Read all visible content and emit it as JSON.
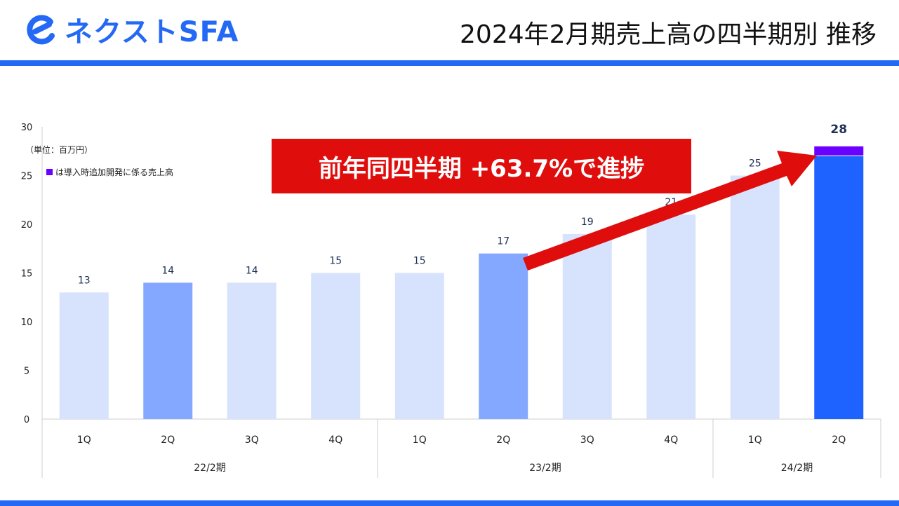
{
  "header": {
    "logo_text": "ネクストSFA",
    "logo_icon": "brand-e-icon",
    "title": "2024年2月期売上高の四半期別 推移"
  },
  "colors": {
    "brand_blue": "#2469f5",
    "bar_light": "#d7e3fc",
    "bar_mid": "#84a8ff",
    "bar_strong": "#1e63ff",
    "bar_new": "#6a00ff",
    "callout_red": "#e00d0d"
  },
  "callout": {
    "text": "前年同四半期 +63.7%で進捗"
  },
  "chart_data": {
    "type": "bar",
    "unit_label": "（単位：百万円）",
    "ylim": [
      0,
      30
    ],
    "yticks": [
      0,
      5,
      10,
      15,
      20,
      25,
      30
    ],
    "categories": [
      "1Q",
      "2Q",
      "3Q",
      "4Q",
      "1Q",
      "2Q",
      "3Q",
      "4Q",
      "1Q",
      "2Q"
    ],
    "groups": [
      {
        "label": "22/2期",
        "count": 4
      },
      {
        "label": "23/2期",
        "count": 4
      },
      {
        "label": "24/2期",
        "count": 2
      }
    ],
    "values": [
      13,
      14,
      14,
      15,
      15,
      17,
      19,
      21,
      25,
      28
    ],
    "value_labels": [
      "13",
      "14",
      "14",
      "15",
      "15",
      "17",
      "19",
      "21",
      "25",
      "28"
    ],
    "bar_styles": [
      "light",
      "mid",
      "light",
      "light",
      "light",
      "mid",
      "light",
      "light",
      "light",
      "strong"
    ],
    "stack_top": {
      "index": 9,
      "value": 1,
      "legend": "は導入時追加開発に係る売上高"
    }
  }
}
